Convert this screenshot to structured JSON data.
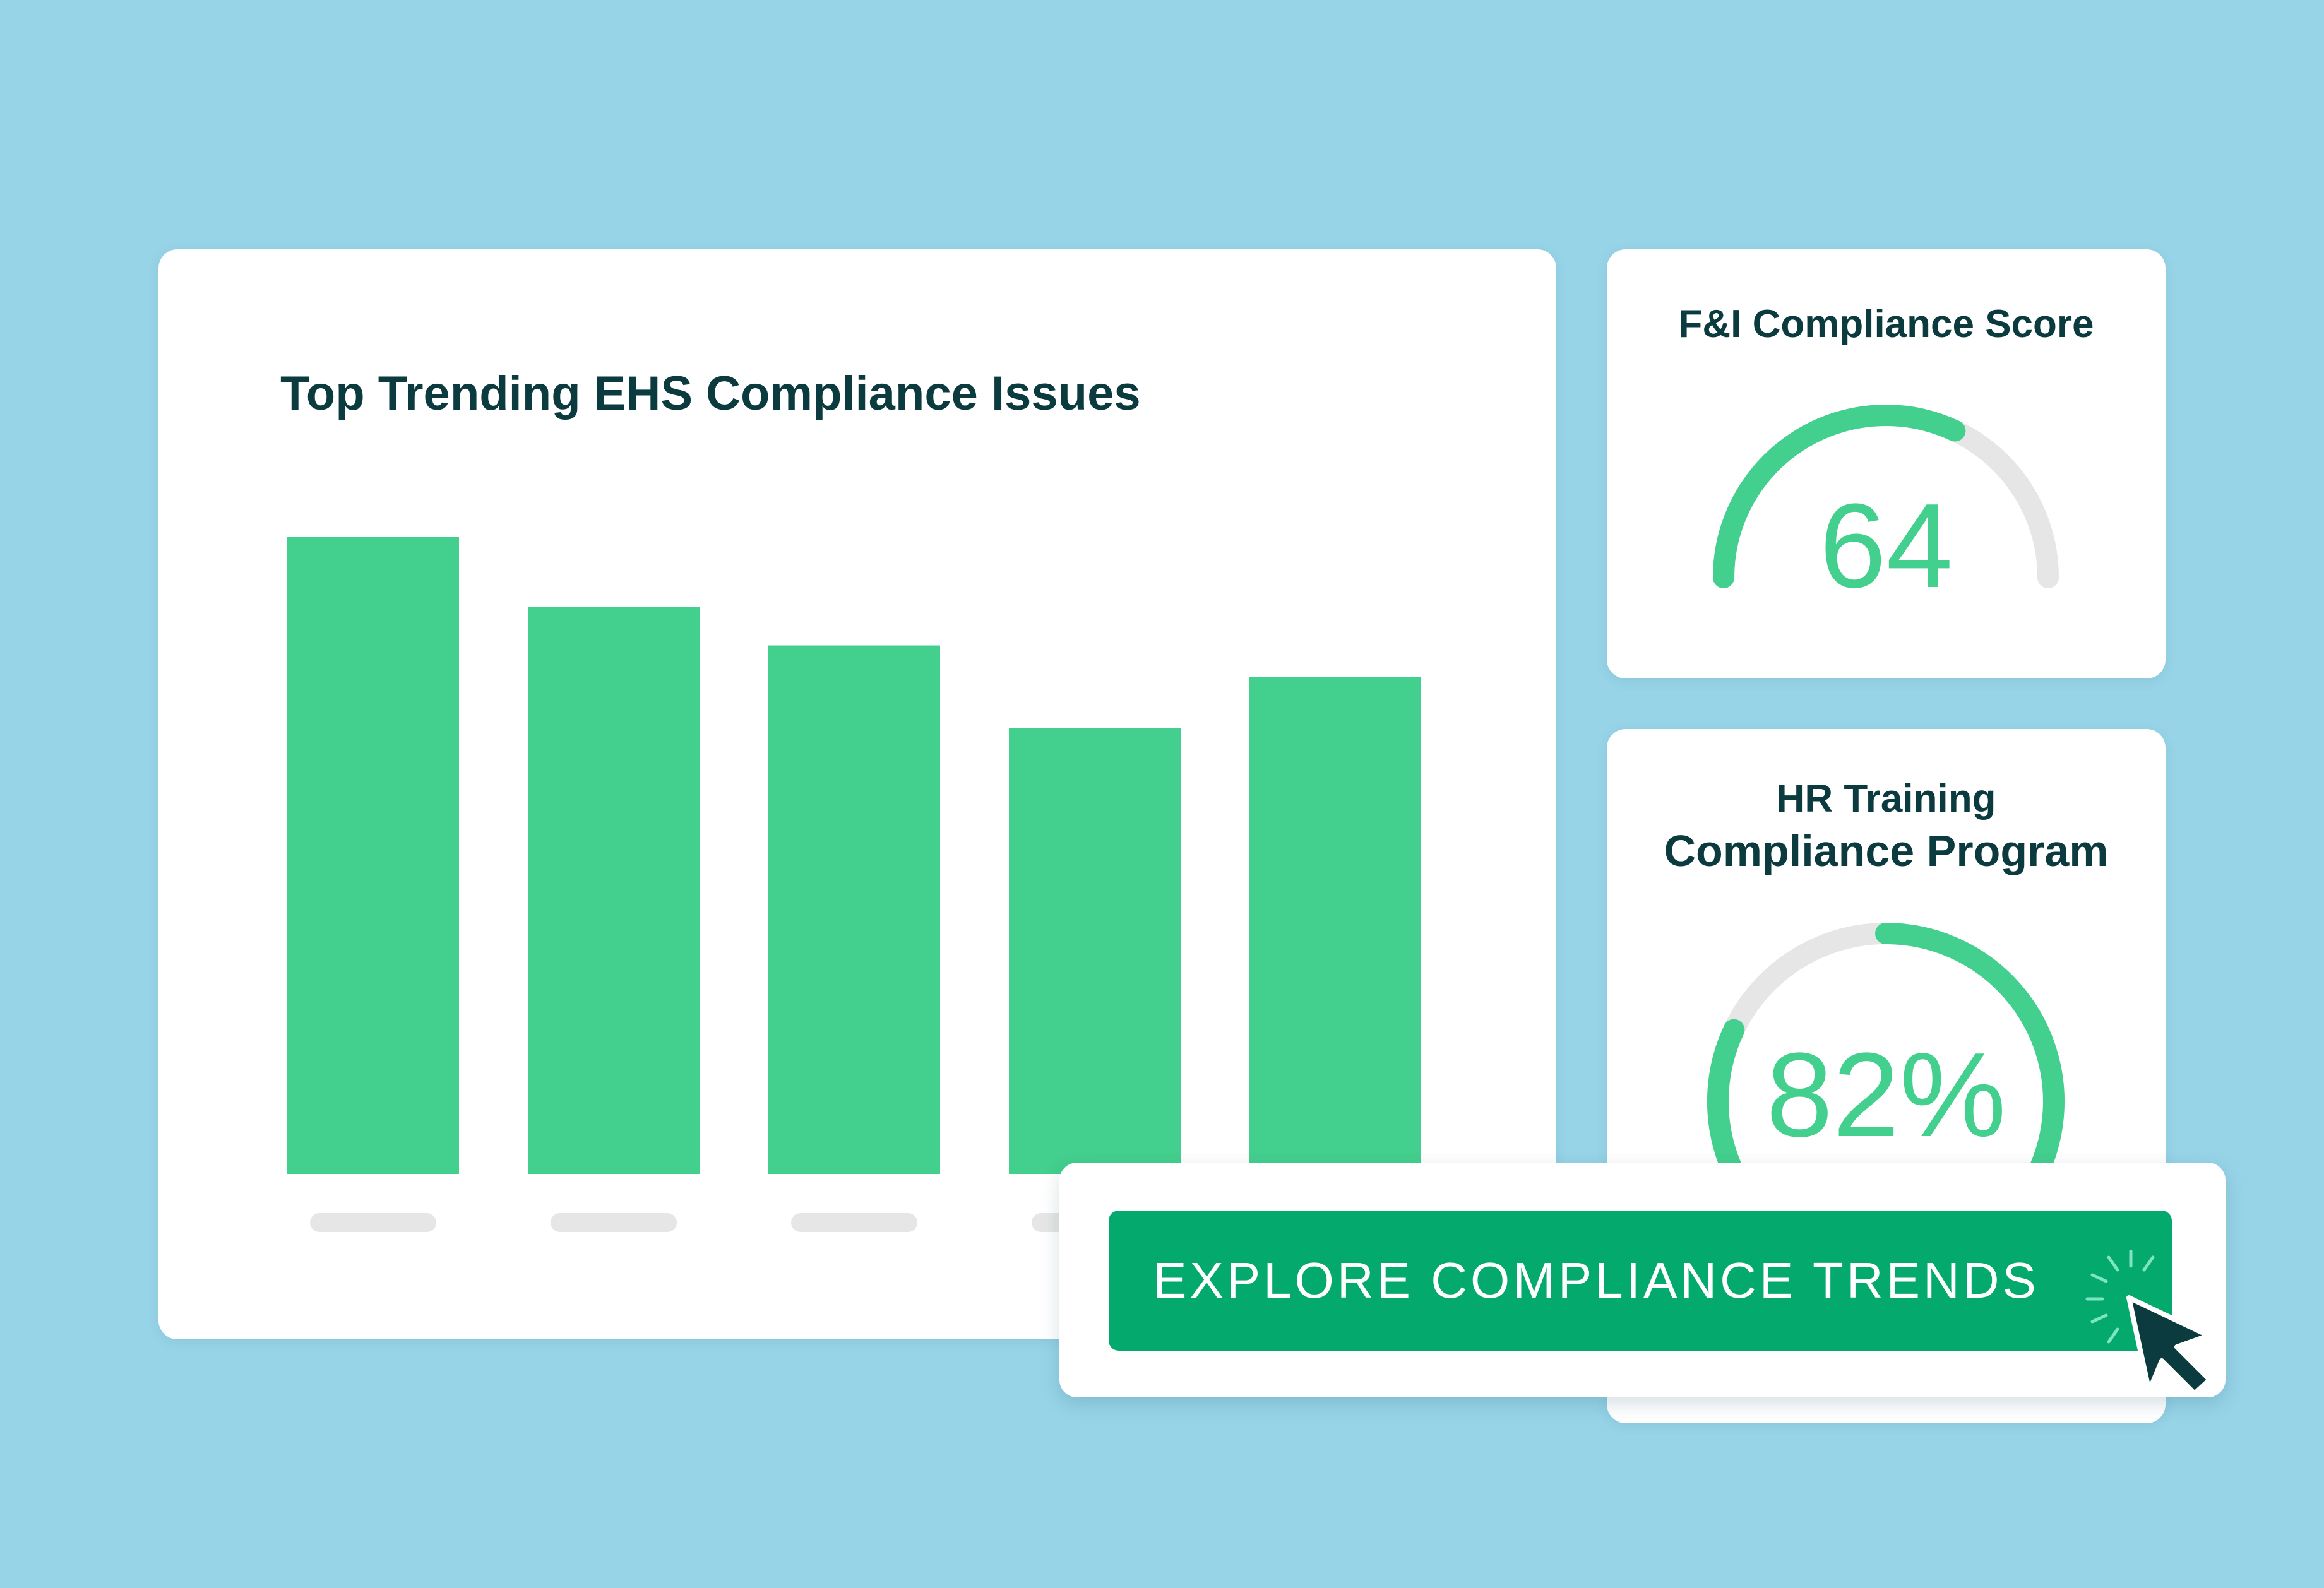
{
  "colors": {
    "background": "#97d4e8",
    "card": "#ffffff",
    "accent_green": "#43cf8d",
    "button_green": "#04a96d",
    "track_gray": "#e6e6e6",
    "title_text": "#0c3b3f",
    "cursor": "#0c3b3f"
  },
  "chart_panel": {
    "title": "Top Trending EHS Compliance Issues"
  },
  "chart_data": {
    "type": "bar",
    "title": "Top Trending EHS Compliance Issues",
    "categories": [
      "",
      "",
      "",
      "",
      ""
    ],
    "values": [
      100,
      89,
      83,
      70,
      78
    ],
    "ylim": [
      0,
      100
    ],
    "grid": false,
    "legend": "none"
  },
  "fi_score": {
    "title": "F&I Compliance Score",
    "value": "64",
    "fill_fraction": 0.64
  },
  "hr_training": {
    "title_line1": "HR Training",
    "title_line2": "Compliance Program",
    "value": "82%",
    "fill_fraction": 0.82
  },
  "cta": {
    "label": "EXPLORE COMPLIANCE TRENDS"
  },
  "icons": {
    "pointer": "cursor-arrow-icon",
    "click": "click-burst-icon"
  }
}
